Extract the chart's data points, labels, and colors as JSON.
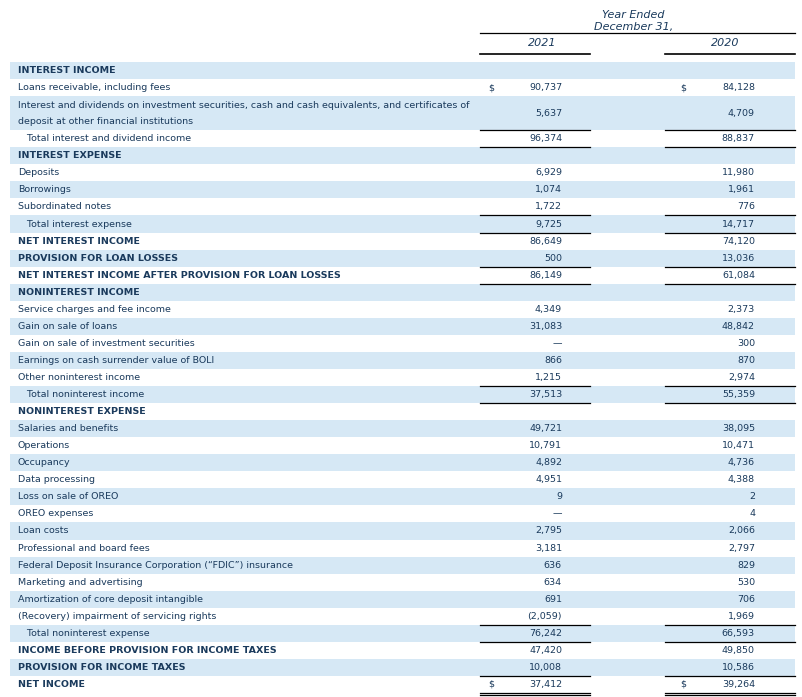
{
  "title_line1": "Year Ended",
  "title_line2": "December 31,",
  "col_headers": [
    "2021",
    "2020"
  ],
  "bg_color_light": "#d6e8f5",
  "bg_color_white": "#ffffff",
  "text_color": "#1a3a5c",
  "rows": [
    {
      "label": "INTEREST INCOME",
      "v2021": "",
      "v2020": "",
      "bold": true,
      "bg": "light",
      "border_top": false,
      "border_bottom": false,
      "dollar_2021": false,
      "dollar_2020": false,
      "two_line": false
    },
    {
      "label": "Loans receivable, including fees",
      "v2021": "90,737",
      "v2020": "84,128",
      "bold": false,
      "bg": "white",
      "border_top": false,
      "border_bottom": false,
      "dollar_2021": true,
      "dollar_2020": true,
      "two_line": false
    },
    {
      "label": "Interest and dividends on investment securities, cash and cash equivalents, and certificates of deposit at other financial institutions",
      "v2021": "5,637",
      "v2020": "4,709",
      "bold": false,
      "bg": "light",
      "border_top": false,
      "border_bottom": false,
      "dollar_2021": false,
      "dollar_2020": false,
      "two_line": true
    },
    {
      "label": "   Total interest and dividend income",
      "v2021": "96,374",
      "v2020": "88,837",
      "bold": false,
      "bg": "white",
      "border_top": true,
      "border_bottom": true,
      "dollar_2021": false,
      "dollar_2020": false,
      "two_line": false
    },
    {
      "label": "INTEREST EXPENSE",
      "v2021": "",
      "v2020": "",
      "bold": true,
      "bg": "light",
      "border_top": false,
      "border_bottom": false,
      "dollar_2021": false,
      "dollar_2020": false,
      "two_line": false
    },
    {
      "label": "Deposits",
      "v2021": "6,929",
      "v2020": "11,980",
      "bold": false,
      "bg": "white",
      "border_top": false,
      "border_bottom": false,
      "dollar_2021": false,
      "dollar_2020": false,
      "two_line": false
    },
    {
      "label": "Borrowings",
      "v2021": "1,074",
      "v2020": "1,961",
      "bold": false,
      "bg": "light",
      "border_top": false,
      "border_bottom": false,
      "dollar_2021": false,
      "dollar_2020": false,
      "two_line": false
    },
    {
      "label": "Subordinated notes",
      "v2021": "1,722",
      "v2020": "776",
      "bold": false,
      "bg": "white",
      "border_top": false,
      "border_bottom": false,
      "dollar_2021": false,
      "dollar_2020": false,
      "two_line": false
    },
    {
      "label": "   Total interest expense",
      "v2021": "9,725",
      "v2020": "14,717",
      "bold": false,
      "bg": "light",
      "border_top": true,
      "border_bottom": true,
      "dollar_2021": false,
      "dollar_2020": false,
      "two_line": false
    },
    {
      "label": "NET INTEREST INCOME",
      "v2021": "86,649",
      "v2020": "74,120",
      "bold": true,
      "bg": "white",
      "border_top": false,
      "border_bottom": false,
      "dollar_2021": false,
      "dollar_2020": false,
      "two_line": false
    },
    {
      "label": "PROVISION FOR LOAN LOSSES",
      "v2021": "500",
      "v2020": "13,036",
      "bold": true,
      "bg": "light",
      "border_top": false,
      "border_bottom": true,
      "dollar_2021": false,
      "dollar_2020": false,
      "two_line": false
    },
    {
      "label": "NET INTEREST INCOME AFTER PROVISION FOR LOAN LOSSES",
      "v2021": "86,149",
      "v2020": "61,084",
      "bold": true,
      "bg": "white",
      "border_top": false,
      "border_bottom": true,
      "dollar_2021": false,
      "dollar_2020": false,
      "two_line": false
    },
    {
      "label": "NONINTEREST INCOME",
      "v2021": "",
      "v2020": "",
      "bold": true,
      "bg": "light",
      "border_top": false,
      "border_bottom": false,
      "dollar_2021": false,
      "dollar_2020": false,
      "two_line": false
    },
    {
      "label": "Service charges and fee income",
      "v2021": "4,349",
      "v2020": "2,373",
      "bold": false,
      "bg": "white",
      "border_top": false,
      "border_bottom": false,
      "dollar_2021": false,
      "dollar_2020": false,
      "two_line": false
    },
    {
      "label": "Gain on sale of loans",
      "v2021": "31,083",
      "v2020": "48,842",
      "bold": false,
      "bg": "light",
      "border_top": false,
      "border_bottom": false,
      "dollar_2021": false,
      "dollar_2020": false,
      "two_line": false
    },
    {
      "label": "Gain on sale of investment securities",
      "v2021": "—",
      "v2020": "300",
      "bold": false,
      "bg": "white",
      "border_top": false,
      "border_bottom": false,
      "dollar_2021": false,
      "dollar_2020": false,
      "two_line": false
    },
    {
      "label": "Earnings on cash surrender value of BOLI",
      "v2021": "866",
      "v2020": "870",
      "bold": false,
      "bg": "light",
      "border_top": false,
      "border_bottom": false,
      "dollar_2021": false,
      "dollar_2020": false,
      "two_line": false
    },
    {
      "label": "Other noninterest income",
      "v2021": "1,215",
      "v2020": "2,974",
      "bold": false,
      "bg": "white",
      "border_top": false,
      "border_bottom": false,
      "dollar_2021": false,
      "dollar_2020": false,
      "two_line": false
    },
    {
      "label": "   Total noninterest income",
      "v2021": "37,513",
      "v2020": "55,359",
      "bold": false,
      "bg": "light",
      "border_top": true,
      "border_bottom": true,
      "dollar_2021": false,
      "dollar_2020": false,
      "two_line": false
    },
    {
      "label": "NONINTEREST EXPENSE",
      "v2021": "",
      "v2020": "",
      "bold": true,
      "bg": "white",
      "border_top": false,
      "border_bottom": false,
      "dollar_2021": false,
      "dollar_2020": false,
      "two_line": false
    },
    {
      "label": "Salaries and benefits",
      "v2021": "49,721",
      "v2020": "38,095",
      "bold": false,
      "bg": "light",
      "border_top": false,
      "border_bottom": false,
      "dollar_2021": false,
      "dollar_2020": false,
      "two_line": false
    },
    {
      "label": "Operations",
      "v2021": "10,791",
      "v2020": "10,471",
      "bold": false,
      "bg": "white",
      "border_top": false,
      "border_bottom": false,
      "dollar_2021": false,
      "dollar_2020": false,
      "two_line": false
    },
    {
      "label": "Occupancy",
      "v2021": "4,892",
      "v2020": "4,736",
      "bold": false,
      "bg": "light",
      "border_top": false,
      "border_bottom": false,
      "dollar_2021": false,
      "dollar_2020": false,
      "two_line": false
    },
    {
      "label": "Data processing",
      "v2021": "4,951",
      "v2020": "4,388",
      "bold": false,
      "bg": "white",
      "border_top": false,
      "border_bottom": false,
      "dollar_2021": false,
      "dollar_2020": false,
      "two_line": false
    },
    {
      "label": "Loss on sale of OREO",
      "v2021": "9",
      "v2020": "2",
      "bold": false,
      "bg": "light",
      "border_top": false,
      "border_bottom": false,
      "dollar_2021": false,
      "dollar_2020": false,
      "two_line": false
    },
    {
      "label": "OREO expenses",
      "v2021": "—",
      "v2020": "4",
      "bold": false,
      "bg": "white",
      "border_top": false,
      "border_bottom": false,
      "dollar_2021": false,
      "dollar_2020": false,
      "two_line": false
    },
    {
      "label": "Loan costs",
      "v2021": "2,795",
      "v2020": "2,066",
      "bold": false,
      "bg": "light",
      "border_top": false,
      "border_bottom": false,
      "dollar_2021": false,
      "dollar_2020": false,
      "two_line": false
    },
    {
      "label": "Professional and board fees",
      "v2021": "3,181",
      "v2020": "2,797",
      "bold": false,
      "bg": "white",
      "border_top": false,
      "border_bottom": false,
      "dollar_2021": false,
      "dollar_2020": false,
      "two_line": false
    },
    {
      "label": "Federal Deposit Insurance Corporation (“FDIC”) insurance",
      "v2021": "636",
      "v2020": "829",
      "bold": false,
      "bg": "light",
      "border_top": false,
      "border_bottom": false,
      "dollar_2021": false,
      "dollar_2020": false,
      "two_line": false
    },
    {
      "label": "Marketing and advertising",
      "v2021": "634",
      "v2020": "530",
      "bold": false,
      "bg": "white",
      "border_top": false,
      "border_bottom": false,
      "dollar_2021": false,
      "dollar_2020": false,
      "two_line": false
    },
    {
      "label": "Amortization of core deposit intangible",
      "v2021": "691",
      "v2020": "706",
      "bold": false,
      "bg": "light",
      "border_top": false,
      "border_bottom": false,
      "dollar_2021": false,
      "dollar_2020": false,
      "two_line": false
    },
    {
      "label": "(Recovery) impairment of servicing rights",
      "v2021": "(2,059)",
      "v2020": "1,969",
      "bold": false,
      "bg": "white",
      "border_top": false,
      "border_bottom": false,
      "dollar_2021": false,
      "dollar_2020": false,
      "two_line": false
    },
    {
      "label": "   Total noninterest expense",
      "v2021": "76,242",
      "v2020": "66,593",
      "bold": false,
      "bg": "light",
      "border_top": true,
      "border_bottom": true,
      "dollar_2021": false,
      "dollar_2020": false,
      "two_line": false
    },
    {
      "label": "INCOME BEFORE PROVISION FOR INCOME TAXES",
      "v2021": "47,420",
      "v2020": "49,850",
      "bold": true,
      "bg": "white",
      "border_top": false,
      "border_bottom": false,
      "dollar_2021": false,
      "dollar_2020": false,
      "two_line": false
    },
    {
      "label": "PROVISION FOR INCOME TAXES",
      "v2021": "10,008",
      "v2020": "10,586",
      "bold": true,
      "bg": "light",
      "border_top": false,
      "border_bottom": true,
      "dollar_2021": false,
      "dollar_2020": false,
      "two_line": false
    },
    {
      "label": "NET INCOME",
      "v2021": "37,412",
      "v2020": "39,264",
      "bold": true,
      "bg": "white",
      "border_top": false,
      "border_bottom": true,
      "dollar_2021": true,
      "dollar_2020": true,
      "two_line": false,
      "double_underline": true
    }
  ],
  "figsize": [
    8.03,
    6.97
  ],
  "dpi": 100
}
